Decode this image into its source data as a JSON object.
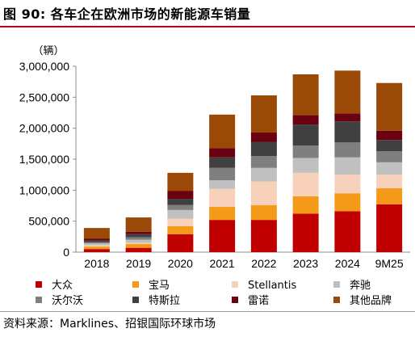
{
  "header": {
    "title": "图 90: 各车企在欧洲市场的新能源车销量"
  },
  "footer": {
    "source": "资料来源：Marklines、招银国际环球市场"
  },
  "chart_data": {
    "type": "bar",
    "stacked": true,
    "unit_label": "（辆）",
    "categories": [
      "2018",
      "2019",
      "2020",
      "2021",
      "2022",
      "2023",
      "2024",
      "9M25"
    ],
    "ylim": [
      0,
      3000000
    ],
    "yticks": [
      0,
      500000,
      1000000,
      1500000,
      2000000,
      2500000,
      3000000
    ],
    "ytick_labels": [
      "0",
      "500,000",
      "1,000,000",
      "1,500,000",
      "2,000,000",
      "2,500,000",
      "3,000,000"
    ],
    "grid": false,
    "legend_position": "bottom",
    "series": [
      {
        "name": "大众",
        "color": "#c00000",
        "values": [
          50000,
          70000,
          290000,
          520000,
          520000,
          620000,
          660000,
          770000
        ]
      },
      {
        "name": "宝马",
        "color": "#f59a18",
        "values": [
          40000,
          60000,
          130000,
          210000,
          240000,
          280000,
          290000,
          260000
        ]
      },
      {
        "name": "Stellantis",
        "color": "#f7d1ba",
        "values": [
          20000,
          20000,
          120000,
          290000,
          380000,
          380000,
          300000,
          220000
        ]
      },
      {
        "name": "奔驰",
        "color": "#c0c0c0",
        "values": [
          30000,
          50000,
          140000,
          140000,
          220000,
          240000,
          280000,
          200000
        ]
      },
      {
        "name": "沃尔沃",
        "color": "#7f7f7f",
        "values": [
          20000,
          40000,
          80000,
          200000,
          190000,
          200000,
          240000,
          180000
        ]
      },
      {
        "name": "特斯拉",
        "color": "#404040",
        "values": [
          30000,
          50000,
          100000,
          170000,
          230000,
          340000,
          340000,
          180000
        ]
      },
      {
        "name": "雷诺",
        "color": "#6b0010",
        "values": [
          30000,
          40000,
          130000,
          150000,
          150000,
          150000,
          130000,
          150000
        ]
      },
      {
        "name": "其他品牌",
        "color": "#9a4a06",
        "values": [
          170000,
          230000,
          290000,
          540000,
          600000,
          660000,
          690000,
          770000
        ]
      }
    ]
  }
}
